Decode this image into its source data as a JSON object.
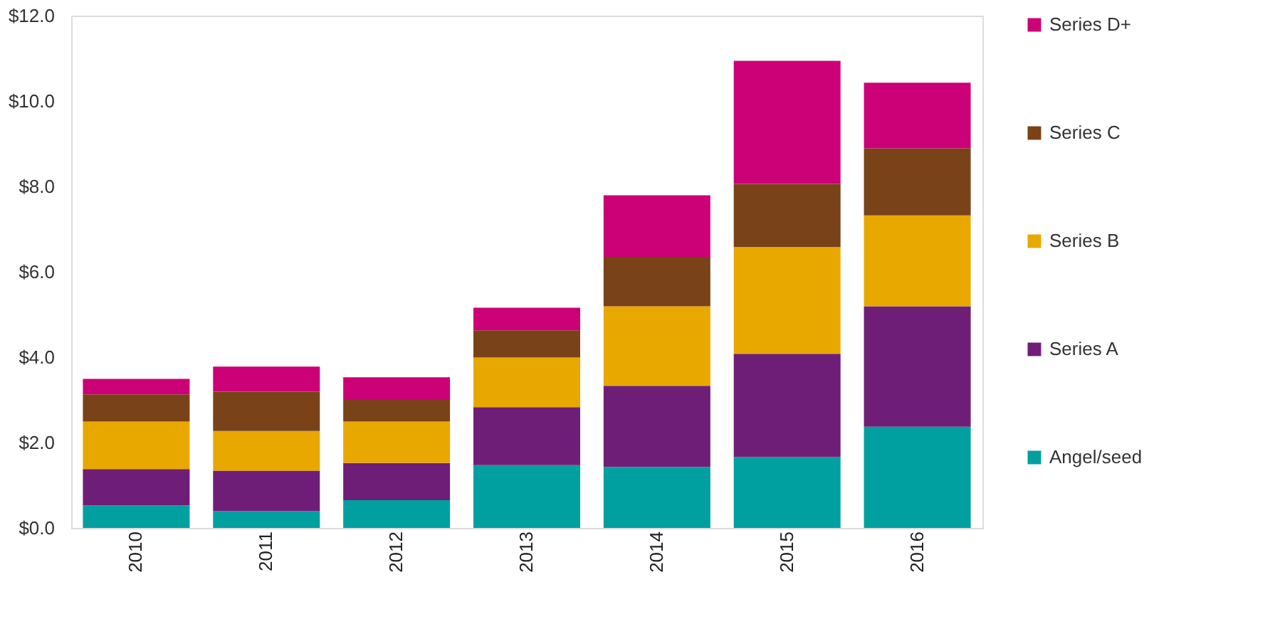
{
  "chart_data": {
    "type": "bar",
    "stacked": true,
    "categories": [
      "2010",
      "2011",
      "2012",
      "2013",
      "2014",
      "2015",
      "2016"
    ],
    "series": [
      {
        "name": "Angel/seed",
        "color": "#00a0a0",
        "values": [
          0.53,
          0.39,
          0.65,
          1.47,
          1.43,
          1.66,
          2.37
        ]
      },
      {
        "name": "Series A",
        "color": "#6f1e78",
        "values": [
          0.85,
          0.95,
          0.87,
          1.36,
          1.9,
          2.42,
          2.82
        ]
      },
      {
        "name": "Series B",
        "color": "#e8a800",
        "values": [
          1.11,
          0.93,
          0.97,
          1.16,
          1.86,
          2.5,
          2.13
        ]
      },
      {
        "name": "Series C",
        "color": "#7a4218",
        "values": [
          0.64,
          0.92,
          0.51,
          0.64,
          1.16,
          1.48,
          1.57
        ]
      },
      {
        "name": "Series D+",
        "color": "#cc0077",
        "values": [
          0.36,
          0.59,
          0.53,
          0.53,
          1.44,
          2.88,
          1.54
        ]
      }
    ],
    "ylim": [
      0,
      12
    ],
    "yticks": [
      {
        "value": 0,
        "label": "$0.0"
      },
      {
        "value": 2,
        "label": "$2.0"
      },
      {
        "value": 4,
        "label": "$4.0"
      },
      {
        "value": 6,
        "label": "$6.0"
      },
      {
        "value": 8,
        "label": "$8.0"
      },
      {
        "value": 10,
        "label": "$10.0"
      },
      {
        "value": 12,
        "label": "$12.0"
      }
    ],
    "grid": false,
    "legend": "right"
  }
}
